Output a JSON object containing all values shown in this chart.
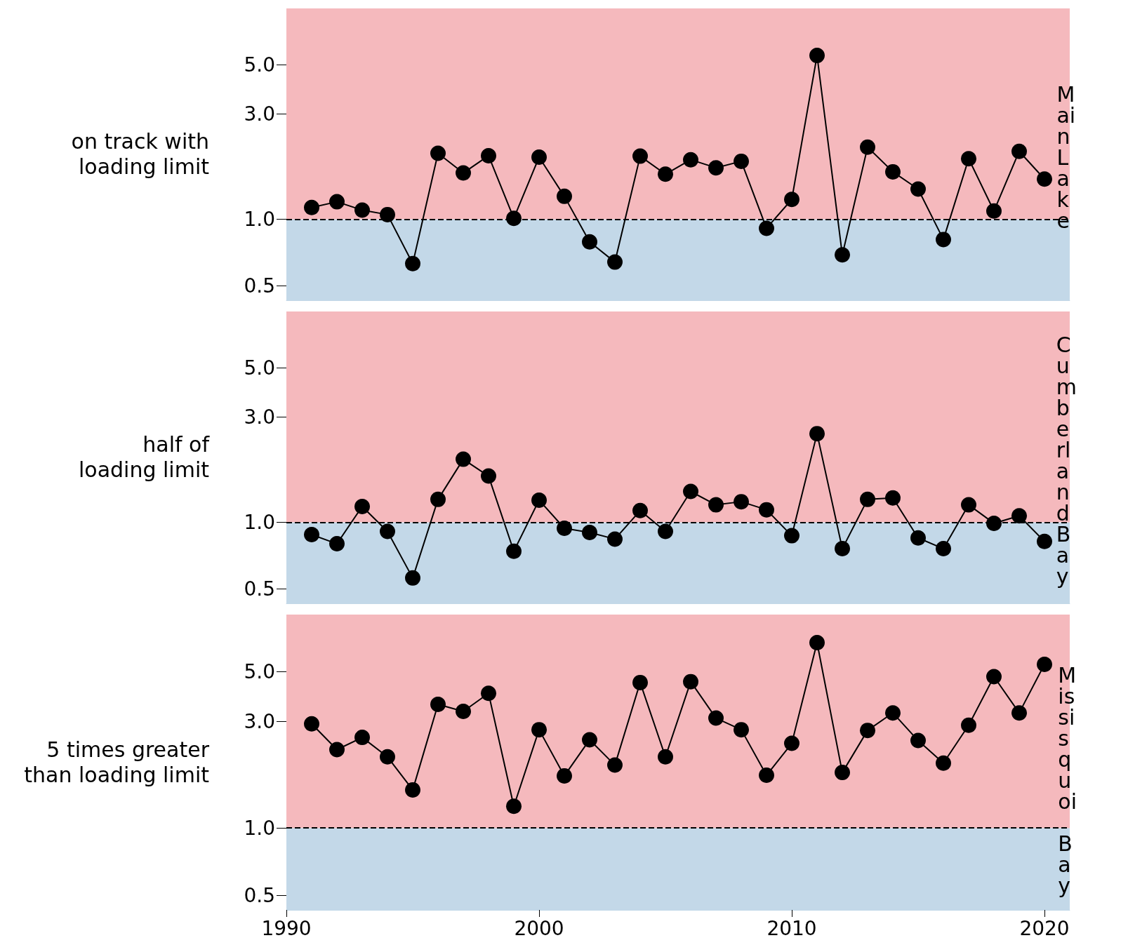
{
  "chart_data": [
    {
      "type": "line",
      "title": "Main Lake",
      "x": [
        1991,
        1992,
        1993,
        1994,
        1995,
        1996,
        1997,
        1998,
        1999,
        2000,
        2001,
        2002,
        2003,
        2004,
        2005,
        2006,
        2007,
        2008,
        2009,
        2010,
        2011,
        2012,
        2013,
        2014,
        2015,
        2016,
        2017,
        2018,
        2019,
        2020
      ],
      "values": [
        1.13,
        1.2,
        1.1,
        1.05,
        0.63,
        1.99,
        1.62,
        1.94,
        1.01,
        1.91,
        1.27,
        0.79,
        0.64,
        1.93,
        1.6,
        1.86,
        1.71,
        1.83,
        0.91,
        1.23,
        5.51,
        0.69,
        2.12,
        1.64,
        1.37,
        0.81,
        1.88,
        1.09,
        2.03,
        1.52
      ],
      "color": "#000000",
      "marker": "circle",
      "line_style": "solid",
      "log": "y",
      "grid": false,
      "tick_labels": "y",
      "xlim": [
        1990,
        2021
      ],
      "xticks": [
        1990,
        2000,
        2010,
        2020
      ],
      "ylim": [
        0.43,
        9
      ],
      "yticks": [
        {
          "value": 0.5,
          "label": "0.5"
        },
        {
          "value": 1,
          "label": "1.0"
        },
        {
          "value": 3,
          "label": "3.0"
        },
        {
          "value": 5,
          "label": "5.0"
        }
      ],
      "bands": [
        {
          "axis": "y",
          "from": 0.43,
          "to": 1,
          "color": "#c3d8e8"
        },
        {
          "axis": "y",
          "from": 1,
          "to": 9,
          "color": "#f5b9bd"
        }
      ],
      "ref_lines": [
        {
          "axis": "y",
          "value": 1,
          "color": "#000000",
          "line_style": "dashed"
        }
      ],
      "annotations": [
        "on track with\nloading limit"
      ]
    },
    {
      "type": "line",
      "title": "Cumberland Bay",
      "x": [
        1991,
        1992,
        1993,
        1994,
        1995,
        1996,
        1997,
        1998,
        1999,
        2000,
        2001,
        2002,
        2003,
        2004,
        2005,
        2006,
        2007,
        2008,
        2009,
        2010,
        2011,
        2012,
        2013,
        2014,
        2015,
        2016,
        2017,
        2018,
        2019,
        2020
      ],
      "values": [
        0.88,
        0.8,
        1.18,
        0.91,
        0.56,
        1.27,
        1.93,
        1.62,
        0.74,
        1.26,
        0.94,
        0.9,
        0.84,
        1.13,
        0.91,
        1.38,
        1.2,
        1.24,
        1.14,
        0.87,
        2.52,
        0.76,
        1.27,
        1.29,
        0.85,
        0.76,
        1.2,
        0.99,
        1.07,
        0.82
      ],
      "color": "#000000",
      "marker": "circle",
      "line_style": "solid",
      "log": "y",
      "grid": false,
      "tick_labels": "y",
      "xlim": [
        1990,
        2021
      ],
      "xticks": [
        1990,
        2000,
        2010,
        2020
      ],
      "ylim": [
        0.43,
        9
      ],
      "yticks": [
        {
          "value": 0.5,
          "label": "0.5"
        },
        {
          "value": 1,
          "label": "1.0"
        },
        {
          "value": 3,
          "label": "3.0"
        },
        {
          "value": 5,
          "label": "5.0"
        }
      ],
      "bands": [
        {
          "axis": "y",
          "from": 0.43,
          "to": 1,
          "color": "#c3d8e8"
        },
        {
          "axis": "y",
          "from": 1,
          "to": 9,
          "color": "#f5b9bd"
        }
      ],
      "ref_lines": [
        {
          "axis": "y",
          "value": 1,
          "color": "#000000",
          "line_style": "dashed"
        }
      ],
      "annotations": [
        "half of\nloading limit"
      ]
    },
    {
      "type": "line",
      "title": "Missisquoi Bay",
      "x": [
        1991,
        1992,
        1993,
        1994,
        1995,
        1996,
        1997,
        1998,
        1999,
        2000,
        2001,
        2002,
        2003,
        2004,
        2005,
        2006,
        2007,
        2008,
        2009,
        2010,
        2011,
        2012,
        2013,
        2014,
        2015,
        2016,
        2017,
        2018,
        2019,
        2020
      ],
      "values": [
        2.92,
        2.24,
        2.54,
        2.08,
        1.48,
        3.57,
        3.32,
        4.0,
        1.25,
        2.75,
        1.71,
        2.48,
        1.91,
        4.47,
        2.08,
        4.51,
        3.1,
        2.75,
        1.72,
        2.39,
        6.74,
        1.77,
        2.73,
        3.27,
        2.46,
        1.95,
        2.88,
        4.75,
        3.27,
        5.39
      ],
      "color": "#000000",
      "marker": "circle",
      "line_style": "solid",
      "log": "y",
      "grid": false,
      "xlim": [
        1990,
        2021
      ],
      "xticks": [
        1990,
        2000,
        2010,
        2020
      ],
      "ylim": [
        0.43,
        9
      ],
      "yticks": [
        {
          "value": 0.5,
          "label": "0.5"
        },
        {
          "value": 1,
          "label": "1.0"
        },
        {
          "value": 3,
          "label": "3.0"
        },
        {
          "value": 5,
          "label": "5.0"
        }
      ],
      "bands": [
        {
          "axis": "y",
          "from": 0.43,
          "to": 1,
          "color": "#c3d8e8"
        },
        {
          "axis": "y",
          "from": 1,
          "to": 9,
          "color": "#f5b9bd"
        }
      ],
      "ref_lines": [
        {
          "axis": "y",
          "value": 1,
          "color": "#000000",
          "line_style": "dashed"
        }
      ],
      "annotations": [
        "5 times greater\nthan loading limit"
      ]
    }
  ]
}
